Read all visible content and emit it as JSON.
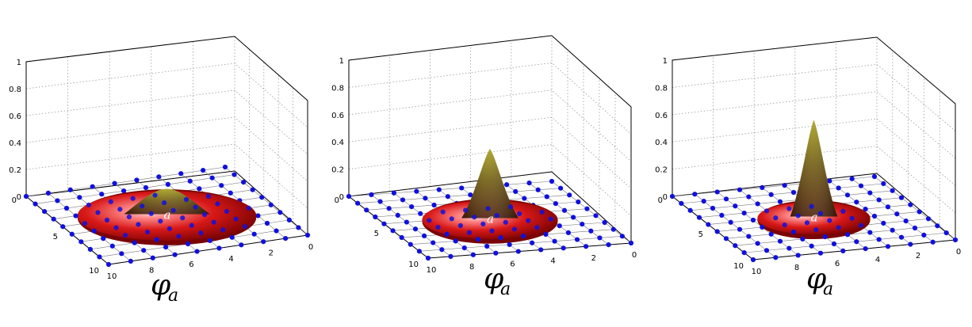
{
  "chart_data": [
    {
      "type": "surface3d",
      "caption": {
        "symbol": "φ",
        "subscript": "a"
      },
      "peak_label": "a",
      "z_ticks": [
        "0",
        "0.2",
        "0.4",
        "0.6",
        "0.8",
        "1"
      ],
      "left_axis_ticks": [
        "0",
        "5",
        "10"
      ],
      "right_axis_ticks": [
        "10",
        "8",
        "6",
        "4",
        "2",
        "0"
      ],
      "zlim": [
        0,
        1
      ],
      "lattice_points": 10,
      "peak_height": 0.2,
      "base_radius": 4,
      "grid": true
    },
    {
      "type": "surface3d",
      "caption": {
        "symbol": "φ",
        "subscript": "a"
      },
      "peak_label": "a",
      "z_ticks": [
        "0",
        "0.2",
        "0.4",
        "0.6",
        "0.8",
        "1"
      ],
      "left_axis_ticks": [
        "0",
        "5",
        "10"
      ],
      "right_axis_ticks": [
        "10",
        "8",
        "6",
        "4",
        "2",
        "0"
      ],
      "zlim": [
        0,
        1
      ],
      "lattice_points": 10,
      "peak_height": 0.52,
      "base_radius": 3,
      "grid": true
    },
    {
      "type": "surface3d",
      "caption": {
        "symbol": "φ",
        "subscript": "a"
      },
      "peak_label": "a",
      "z_ticks": [
        "0",
        "0.2",
        "0.4",
        "0.6",
        "0.8",
        "1"
      ],
      "left_axis_ticks": [
        "0",
        "5",
        "10"
      ],
      "right_axis_ticks": [
        "10",
        "8",
        "6",
        "4",
        "2",
        "0"
      ],
      "zlim": [
        0,
        1
      ],
      "lattice_points": 10,
      "peak_height": 0.72,
      "base_radius": 2.5,
      "grid": true
    }
  ],
  "colors": {
    "surface_red": "#cc1010",
    "surface_light": "#ff9a9a",
    "peak_olive": "#8c8c10",
    "peak_dark": "#4a2a05",
    "lattice_dot": "#1010dd",
    "lattice_line": "#777777",
    "grid_line": "#9a9a9a"
  }
}
